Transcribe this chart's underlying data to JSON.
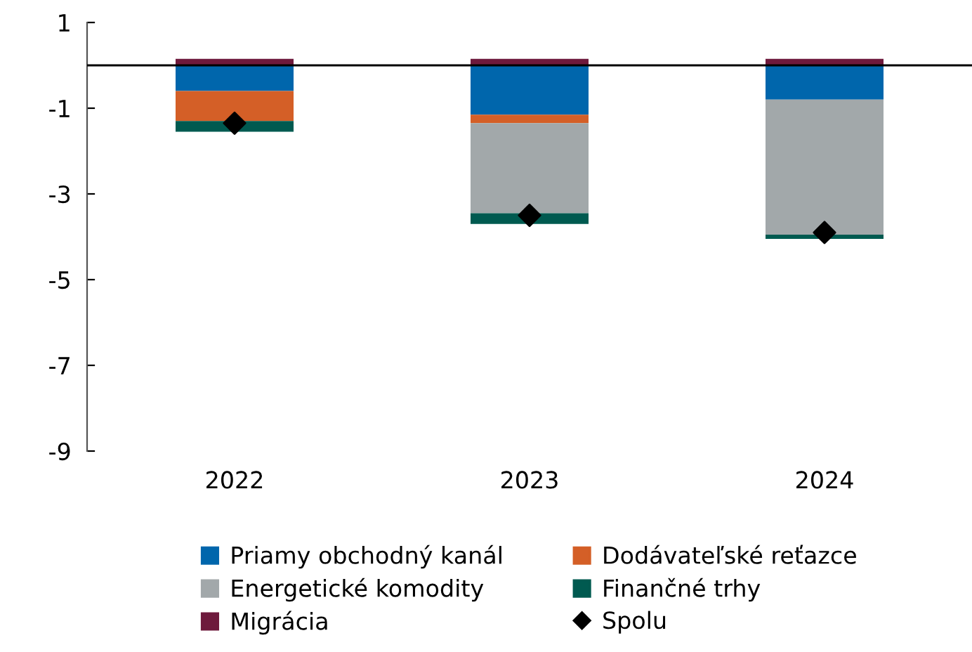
{
  "chart_data": {
    "type": "bar",
    "stacked": true,
    "categories": [
      "2022",
      "2023",
      "2024"
    ],
    "series": [
      {
        "name": "Priamy obchodný kanál",
        "color": "#0066ac",
        "values": [
          -0.6,
          -1.15,
          -0.8
        ]
      },
      {
        "name": "Dodávateľské reťazce",
        "color": "#d45f27",
        "values": [
          -0.7,
          -0.2,
          null
        ]
      },
      {
        "name": "Energetické komodity",
        "color": "#a2a8aa",
        "values": [
          null,
          -2.1,
          -3.15
        ]
      },
      {
        "name": "Finančné trhy",
        "color": "#005a50",
        "values": [
          -0.25,
          -0.25,
          -0.1
        ]
      },
      {
        "name": "Migrácia",
        "color": "#6e1a3c",
        "values": [
          0.15,
          0.15,
          0.15
        ]
      },
      {
        "name": "Spolu",
        "type": "scatter",
        "color": "#000000",
        "marker": "diamond",
        "values": [
          -1.35,
          -3.5,
          -3.9
        ]
      }
    ],
    "ylim": [
      -9,
      1
    ],
    "yticks": [
      1,
      -1,
      -3,
      -5,
      -7,
      -9
    ],
    "ref_lines": [
      {
        "axis": "y",
        "value": 0,
        "color": "#000000"
      }
    ],
    "grid": false,
    "legend": "bottom"
  }
}
